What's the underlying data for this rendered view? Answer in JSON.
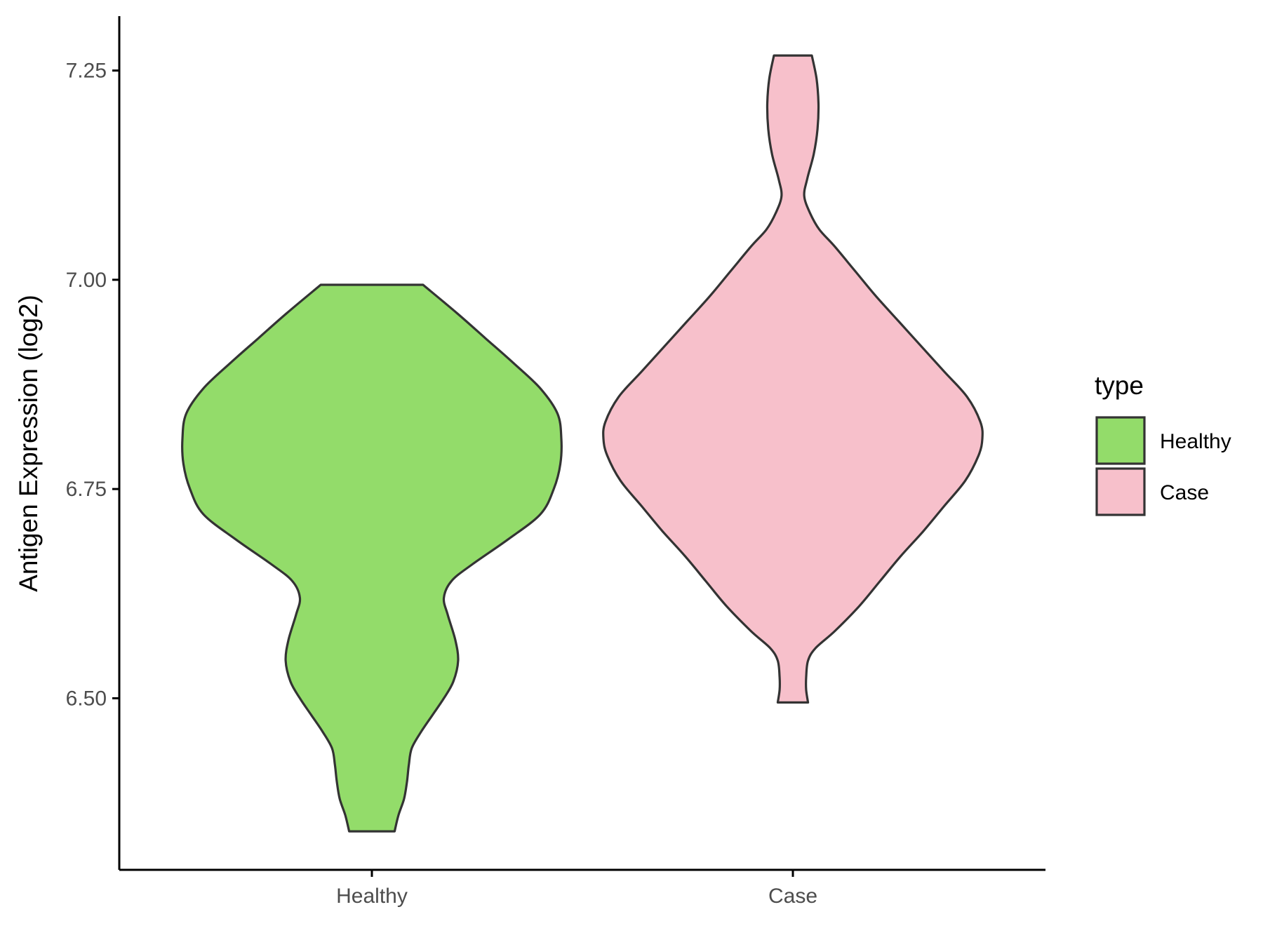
{
  "chart_data": {
    "type": "violin",
    "ylabel": "Antigen Expression (log2)",
    "xlabel": "",
    "categories": [
      "Healthy",
      "Case"
    ],
    "ylim": [
      6.295,
      7.315
    ],
    "yticks": [
      6.5,
      6.75,
      7.0,
      7.25
    ],
    "ytick_labels": [
      "6.50",
      "6.75",
      "7.00",
      "7.25"
    ],
    "grid": false,
    "legend": {
      "title": "type",
      "position": "right",
      "entries": [
        {
          "label": "Healthy",
          "color": "#93DC6A"
        },
        {
          "label": "Case",
          "color": "#F7C0CB"
        }
      ]
    },
    "series": [
      {
        "name": "Healthy",
        "color": "#93DC6A",
        "y_range": [
          6.341,
          6.994
        ],
        "density_profile": [
          {
            "y": 6.341,
            "w": 0.12
          },
          {
            "y": 6.36,
            "w": 0.14
          },
          {
            "y": 6.38,
            "w": 0.17
          },
          {
            "y": 6.4,
            "w": 0.185
          },
          {
            "y": 6.42,
            "w": 0.195
          },
          {
            "y": 6.44,
            "w": 0.21
          },
          {
            "y": 6.46,
            "w": 0.26
          },
          {
            "y": 6.48,
            "w": 0.32
          },
          {
            "y": 6.5,
            "w": 0.38
          },
          {
            "y": 6.52,
            "w": 0.43
          },
          {
            "y": 6.545,
            "w": 0.455
          },
          {
            "y": 6.57,
            "w": 0.44
          },
          {
            "y": 6.6,
            "w": 0.4
          },
          {
            "y": 6.62,
            "w": 0.38
          },
          {
            "y": 6.64,
            "w": 0.42
          },
          {
            "y": 6.66,
            "w": 0.53
          },
          {
            "y": 6.69,
            "w": 0.72
          },
          {
            "y": 6.72,
            "w": 0.89
          },
          {
            "y": 6.75,
            "w": 0.96
          },
          {
            "y": 6.78,
            "w": 0.995
          },
          {
            "y": 6.81,
            "w": 1.0
          },
          {
            "y": 6.84,
            "w": 0.98
          },
          {
            "y": 6.87,
            "w": 0.89
          },
          {
            "y": 6.9,
            "w": 0.75
          },
          {
            "y": 6.93,
            "w": 0.6
          },
          {
            "y": 6.96,
            "w": 0.45
          },
          {
            "y": 6.994,
            "w": 0.27
          }
        ]
      },
      {
        "name": "Case",
        "color": "#F7C0CB",
        "y_range": [
          6.495,
          7.268
        ],
        "density_profile": [
          {
            "y": 6.495,
            "w": 0.08
          },
          {
            "y": 6.51,
            "w": 0.07
          },
          {
            "y": 6.525,
            "w": 0.07
          },
          {
            "y": 6.545,
            "w": 0.08
          },
          {
            "y": 6.56,
            "w": 0.12
          },
          {
            "y": 6.58,
            "w": 0.22
          },
          {
            "y": 6.61,
            "w": 0.35
          },
          {
            "y": 6.64,
            "w": 0.46
          },
          {
            "y": 6.67,
            "w": 0.57
          },
          {
            "y": 6.7,
            "w": 0.69
          },
          {
            "y": 6.73,
            "w": 0.8
          },
          {
            "y": 6.76,
            "w": 0.91
          },
          {
            "y": 6.79,
            "w": 0.98
          },
          {
            "y": 6.81,
            "w": 1.0
          },
          {
            "y": 6.83,
            "w": 0.99
          },
          {
            "y": 6.86,
            "w": 0.92
          },
          {
            "y": 6.89,
            "w": 0.8
          },
          {
            "y": 6.92,
            "w": 0.68
          },
          {
            "y": 6.95,
            "w": 0.56
          },
          {
            "y": 6.98,
            "w": 0.44
          },
          {
            "y": 7.01,
            "w": 0.33
          },
          {
            "y": 7.04,
            "w": 0.22
          },
          {
            "y": 7.06,
            "w": 0.14
          },
          {
            "y": 7.08,
            "w": 0.09
          },
          {
            "y": 7.1,
            "w": 0.06
          },
          {
            "y": 7.12,
            "w": 0.075
          },
          {
            "y": 7.15,
            "w": 0.11
          },
          {
            "y": 7.18,
            "w": 0.13
          },
          {
            "y": 7.21,
            "w": 0.135
          },
          {
            "y": 7.24,
            "w": 0.125
          },
          {
            "y": 7.268,
            "w": 0.1
          }
        ]
      }
    ]
  }
}
